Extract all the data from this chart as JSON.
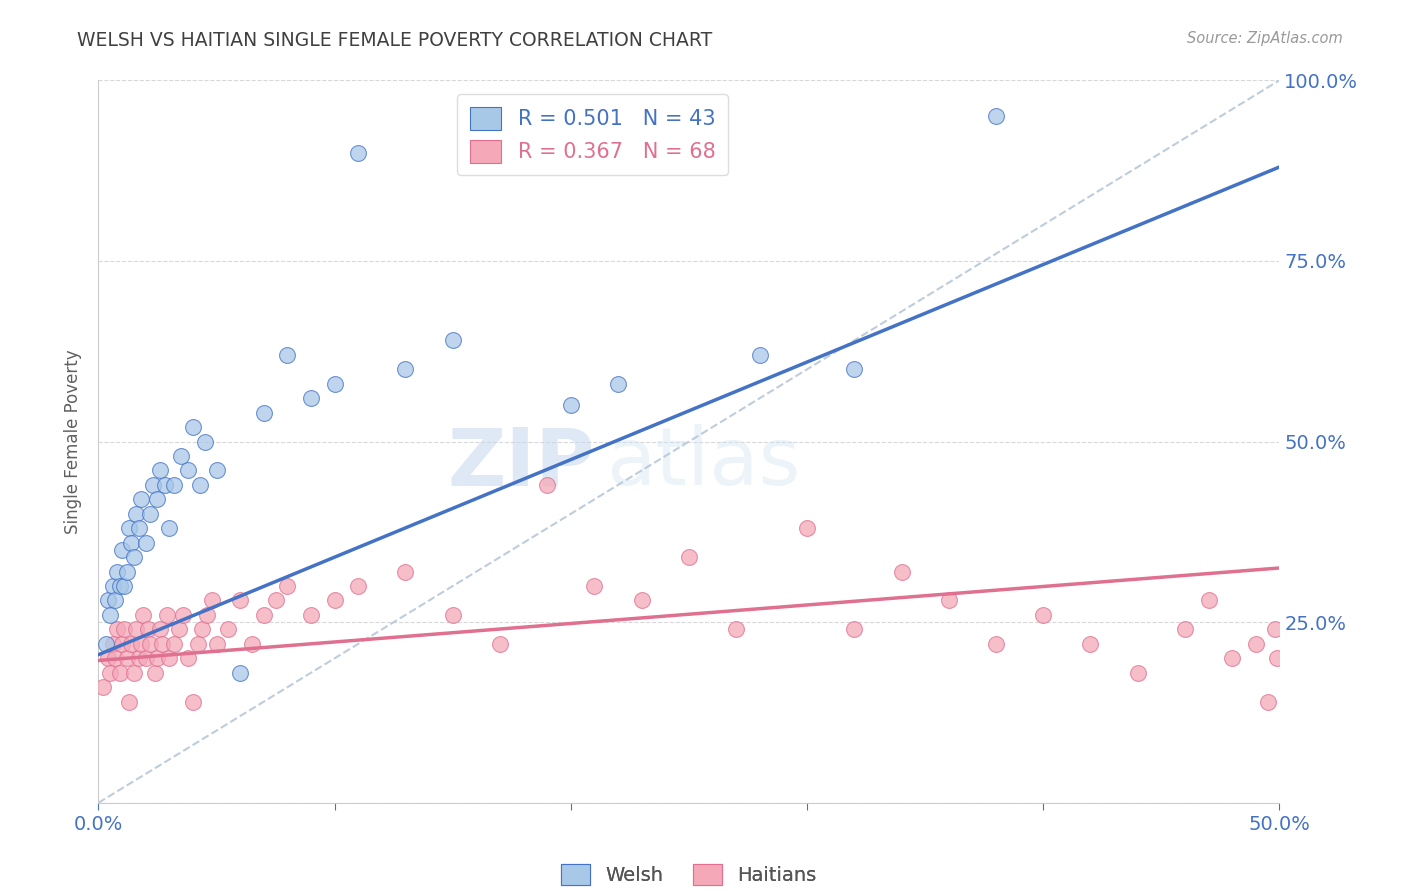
{
  "title": "WELSH VS HAITIAN SINGLE FEMALE POVERTY CORRELATION CHART",
  "source": "Source: ZipAtlas.com",
  "ylabel": "Single Female Poverty",
  "xlim": [
    0.0,
    0.5
  ],
  "ylim": [
    0.0,
    1.0
  ],
  "welsh_R": 0.501,
  "welsh_N": 43,
  "haitian_R": 0.367,
  "haitian_N": 68,
  "welsh_color": "#a8c8e8",
  "haitian_color": "#f4a8b8",
  "welsh_line_color": "#4472c4",
  "haitian_line_color": "#e07090",
  "ref_line_color": "#b8c8d8",
  "background_color": "#ffffff",
  "welsh_scatter_x": [
    0.003,
    0.004,
    0.005,
    0.006,
    0.007,
    0.008,
    0.009,
    0.01,
    0.011,
    0.012,
    0.013,
    0.014,
    0.015,
    0.016,
    0.017,
    0.018,
    0.02,
    0.022,
    0.023,
    0.025,
    0.026,
    0.028,
    0.03,
    0.032,
    0.035,
    0.038,
    0.04,
    0.043,
    0.045,
    0.05,
    0.06,
    0.07,
    0.08,
    0.09,
    0.1,
    0.11,
    0.13,
    0.15,
    0.2,
    0.22,
    0.28,
    0.32,
    0.38
  ],
  "welsh_scatter_y": [
    0.22,
    0.28,
    0.26,
    0.3,
    0.28,
    0.32,
    0.3,
    0.35,
    0.3,
    0.32,
    0.38,
    0.36,
    0.34,
    0.4,
    0.38,
    0.42,
    0.36,
    0.4,
    0.44,
    0.42,
    0.46,
    0.44,
    0.38,
    0.44,
    0.48,
    0.46,
    0.52,
    0.44,
    0.5,
    0.46,
    0.18,
    0.54,
    0.62,
    0.56,
    0.58,
    0.9,
    0.6,
    0.64,
    0.55,
    0.58,
    0.62,
    0.6,
    0.95
  ],
  "haitian_scatter_x": [
    0.002,
    0.004,
    0.005,
    0.006,
    0.007,
    0.008,
    0.009,
    0.01,
    0.011,
    0.012,
    0.013,
    0.014,
    0.015,
    0.016,
    0.017,
    0.018,
    0.019,
    0.02,
    0.021,
    0.022,
    0.024,
    0.025,
    0.026,
    0.027,
    0.029,
    0.03,
    0.032,
    0.034,
    0.036,
    0.038,
    0.04,
    0.042,
    0.044,
    0.046,
    0.048,
    0.05,
    0.055,
    0.06,
    0.065,
    0.07,
    0.075,
    0.08,
    0.09,
    0.1,
    0.11,
    0.13,
    0.15,
    0.17,
    0.19,
    0.21,
    0.23,
    0.25,
    0.27,
    0.3,
    0.32,
    0.34,
    0.36,
    0.38,
    0.4,
    0.42,
    0.44,
    0.46,
    0.47,
    0.48,
    0.49,
    0.495,
    0.498,
    0.499
  ],
  "haitian_scatter_y": [
    0.16,
    0.2,
    0.18,
    0.22,
    0.2,
    0.24,
    0.18,
    0.22,
    0.24,
    0.2,
    0.14,
    0.22,
    0.18,
    0.24,
    0.2,
    0.22,
    0.26,
    0.2,
    0.24,
    0.22,
    0.18,
    0.2,
    0.24,
    0.22,
    0.26,
    0.2,
    0.22,
    0.24,
    0.26,
    0.2,
    0.14,
    0.22,
    0.24,
    0.26,
    0.28,
    0.22,
    0.24,
    0.28,
    0.22,
    0.26,
    0.28,
    0.3,
    0.26,
    0.28,
    0.3,
    0.32,
    0.26,
    0.22,
    0.44,
    0.3,
    0.28,
    0.34,
    0.24,
    0.38,
    0.24,
    0.32,
    0.28,
    0.22,
    0.26,
    0.22,
    0.18,
    0.24,
    0.28,
    0.2,
    0.22,
    0.14,
    0.24,
    0.2
  ],
  "welsh_line_x0": 0.0,
  "welsh_line_y0": 0.205,
  "welsh_line_x1": 0.5,
  "welsh_line_y1": 0.88,
  "haitian_line_x0": 0.0,
  "haitian_line_y0": 0.197,
  "haitian_line_x1": 0.5,
  "haitian_line_y1": 0.325,
  "watermark_zip": "ZIP",
  "watermark_atlas": "atlas",
  "title_color": "#404040",
  "tick_color": "#4472c4",
  "grid_color": "#d8d8d8",
  "ylabel_color": "#606060"
}
